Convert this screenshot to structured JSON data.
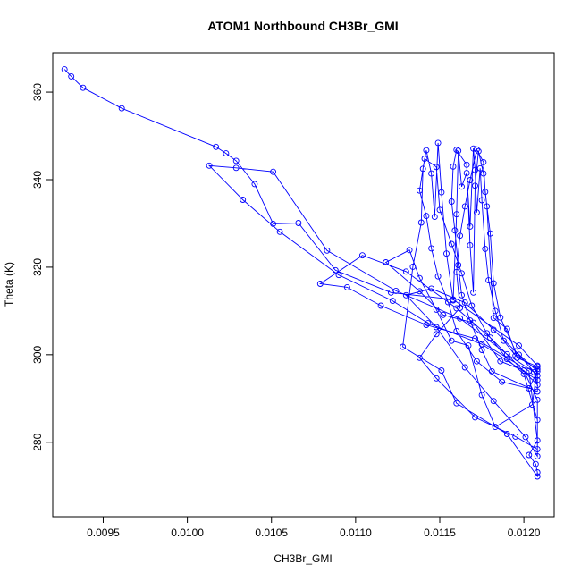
{
  "chart_data": {
    "type": "line",
    "title": "ATOM1 Northbound CH3Br_GMI",
    "xlabel": "CH3Br_GMI",
    "ylabel": "Theta (K)",
    "xlim": [
      0.0092,
      0.01218
    ],
    "ylim": [
      263,
      369
    ],
    "x_ticks": [
      0.0095,
      0.01,
      0.0105,
      0.011,
      0.0115,
      0.012
    ],
    "x_tick_labels": [
      "0.0095",
      "0.0100",
      "0.0105",
      "0.0110",
      "0.0115",
      "0.0120"
    ],
    "y_ticks": [
      280,
      300,
      320,
      340,
      360
    ],
    "y_tick_labels": [
      "280",
      "300",
      "320",
      "340",
      "360"
    ],
    "grid": false,
    "marker": "open-circle",
    "color": "#0000ff",
    "series": [
      {
        "values": [
          [
            0.00927,
            365.2
          ],
          [
            0.00931,
            363.6
          ],
          [
            0.00938,
            361.0
          ],
          [
            0.00961,
            356.3
          ],
          [
            0.01017,
            347.5
          ],
          [
            0.01023,
            346.0
          ],
          [
            0.01029,
            344.3
          ],
          [
            0.0104,
            339.0
          ],
          [
            0.01051,
            329.9
          ],
          [
            0.01066,
            330.1
          ],
          [
            0.01088,
            319.3
          ],
          [
            0.01121,
            314.2
          ],
          [
            0.01158,
            312.6
          ],
          [
            0.01197,
            302.1
          ],
          [
            0.01208,
            297.5
          ],
          [
            0.01208,
            294.2
          ],
          [
            0.01175,
            302.4
          ],
          [
            0.01143,
            307.2
          ],
          [
            0.01122,
            312.3
          ],
          [
            0.0109,
            318.2
          ],
          [
            0.01055,
            328.1
          ],
          [
            0.01033,
            335.4
          ],
          [
            0.01013,
            343.2
          ],
          [
            0.01029,
            342.7
          ],
          [
            0.01051,
            341.8
          ],
          [
            0.01083,
            323.8
          ],
          [
            0.01124,
            314.6
          ],
          [
            0.01162,
            308.3
          ],
          [
            0.0119,
            300.1
          ],
          [
            0.01206,
            296.0
          ],
          [
            0.01208,
            293.1
          ],
          [
            0.0118,
            303.9
          ],
          [
            0.0116,
            310.6
          ],
          [
            0.0113,
            319.0
          ],
          [
            0.01104,
            322.7
          ],
          [
            0.01079,
            316.2
          ],
          [
            0.01095,
            315.4
          ],
          [
            0.01115,
            311.2
          ],
          [
            0.01142,
            306.8
          ],
          [
            0.01171,
            303.7
          ],
          [
            0.01203,
            296.3
          ],
          [
            0.01208,
            280.4
          ],
          [
            0.01203,
            277.1
          ],
          [
            0.01207,
            275.0
          ],
          [
            0.01208,
            273.1
          ],
          [
            0.01208,
            272.2
          ],
          [
            0.0119,
            281.9
          ],
          [
            0.0116,
            288.9
          ],
          [
            0.01151,
            296.4
          ],
          [
            0.01128,
            301.8
          ],
          [
            0.01134,
            320.1
          ],
          [
            0.01139,
            330.2
          ],
          [
            0.0114,
            342.5
          ],
          [
            0.01142,
            346.7
          ],
          [
            0.01145,
            341.4
          ],
          [
            0.01147,
            331.5
          ],
          [
            0.01149,
            348.4
          ],
          [
            0.01151,
            337.1
          ],
          [
            0.01154,
            323.1
          ],
          [
            0.01158,
            312.4
          ],
          [
            0.0116,
            332.1
          ],
          [
            0.01161,
            346.6
          ],
          [
            0.01163,
            338.4
          ],
          [
            0.01166,
            341.5
          ],
          [
            0.01168,
            329.3
          ],
          [
            0.0117,
            347.1
          ],
          [
            0.01171,
            342.2
          ],
          [
            0.01172,
            332.5
          ],
          [
            0.01174,
            342.6
          ],
          [
            0.01175,
            335.3
          ],
          [
            0.01177,
            324.2
          ],
          [
            0.01179,
            317.0
          ],
          [
            0.01183,
            310.0
          ],
          [
            0.01188,
            303.2
          ],
          [
            0.01195,
            299.8
          ],
          [
            0.01208,
            296.7
          ],
          [
            0.01208,
            291.6
          ],
          [
            0.01181,
            296.2
          ],
          [
            0.01175,
            301.1
          ],
          [
            0.01168,
            307.8
          ],
          [
            0.01163,
            313.6
          ],
          [
            0.01161,
            320.5
          ],
          [
            0.01159,
            328.4
          ],
          [
            0.01157,
            335.0
          ],
          [
            0.01158,
            343.0
          ],
          [
            0.0116,
            346.8
          ],
          [
            0.01166,
            343.4
          ],
          [
            0.01168,
            325.0
          ],
          [
            0.0117,
            314.2
          ],
          [
            0.01171,
            338.6
          ],
          [
            0.01173,
            346.5
          ],
          [
            0.01176,
            341.4
          ],
          [
            0.01178,
            333.9
          ],
          [
            0.01182,
            308.4
          ],
          [
            0.0119,
            305.9
          ],
          [
            0.01196,
            299.3
          ],
          [
            0.01208,
            297.3
          ],
          [
            0.01205,
            288.6
          ],
          [
            0.01183,
            283.5
          ],
          [
            0.01175,
            290.8
          ],
          [
            0.01167,
            302.1
          ],
          [
            0.01157,
            303.2
          ],
          [
            0.01148,
            310.3
          ],
          [
            0.01138,
            317.5
          ],
          [
            0.01132,
            323.9
          ],
          [
            0.01118,
            321.1
          ],
          [
            0.01138,
            314.5
          ],
          [
            0.01152,
            309.1
          ],
          [
            0.0117,
            307.3
          ],
          [
            0.01186,
            298.5
          ],
          [
            0.012,
            296.4
          ],
          [
            0.01208,
            289.7
          ],
          [
            0.01208,
            278.4
          ],
          [
            0.01195,
            281.3
          ],
          [
            0.01171,
            285.7
          ],
          [
            0.01148,
            294.6
          ],
          [
            0.01138,
            299.3
          ],
          [
            0.01148,
            304.7
          ],
          [
            0.01162,
            310.7
          ],
          [
            0.0116,
            318.9
          ],
          [
            0.01162,
            327.2
          ],
          [
            0.01165,
            333.9
          ],
          [
            0.01168,
            339.9
          ],
          [
            0.01172,
            346.9
          ],
          [
            0.01176,
            344.0
          ],
          [
            0.01177,
            337.2
          ],
          [
            0.0118,
            327.7
          ],
          [
            0.01182,
            316.3
          ],
          [
            0.01186,
            308.5
          ],
          [
            0.01195,
            300.8
          ],
          [
            0.01208,
            296.2
          ],
          [
            0.01203,
            292.3
          ],
          [
            0.01187,
            293.8
          ],
          [
            0.01172,
            298.5
          ],
          [
            0.0116,
            305.4
          ],
          [
            0.01155,
            312.0
          ],
          [
            0.01149,
            317.9
          ],
          [
            0.01145,
            324.3
          ],
          [
            0.01142,
            331.7
          ],
          [
            0.01138,
            337.5
          ],
          [
            0.01141,
            344.8
          ],
          [
            0.01148,
            342.9
          ],
          [
            0.0115,
            333.1
          ],
          [
            0.01157,
            325.3
          ],
          [
            0.01163,
            318.6
          ],
          [
            0.01169,
            311.2
          ],
          [
            0.01178,
            304.9
          ],
          [
            0.0119,
            299.0
          ],
          [
            0.012,
            295.6
          ],
          [
            0.01208,
            285.1
          ],
          [
            0.01208,
            276.8
          ],
          [
            0.01201,
            281.2
          ],
          [
            0.01182,
            289.4
          ],
          [
            0.01165,
            297.1
          ],
          [
            0.01148,
            306.3
          ],
          [
            0.0113,
            313.6
          ],
          [
            0.01145,
            315.1
          ],
          [
            0.01165,
            311.9
          ],
          [
            0.01182,
            305.7
          ],
          [
            0.01197,
            300.0
          ],
          [
            0.01208,
            295.2
          ]
        ]
      }
    ]
  }
}
